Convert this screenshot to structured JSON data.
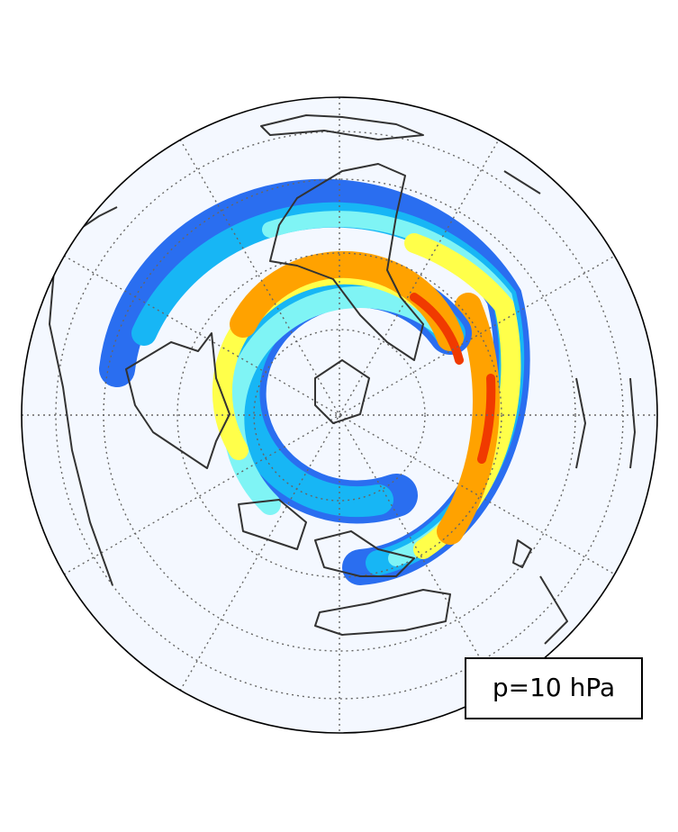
{
  "label": "p=10 hPa"
}
